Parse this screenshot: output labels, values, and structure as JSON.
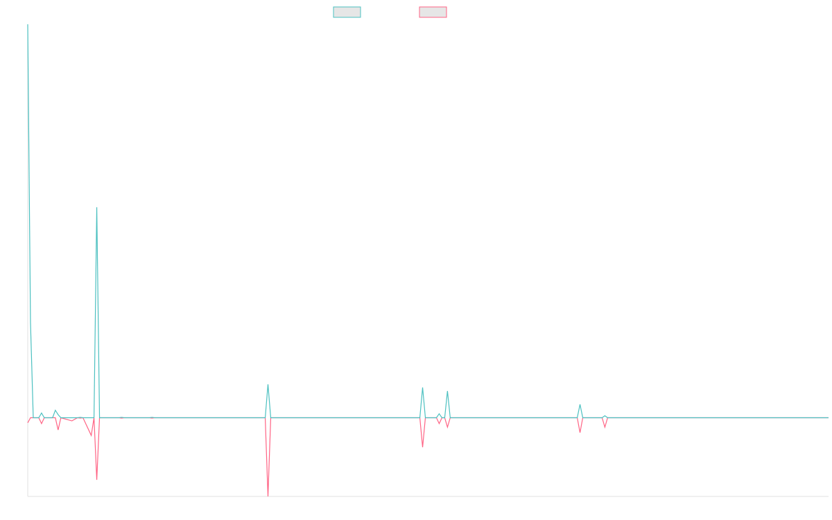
{
  "chart_data": {
    "type": "line",
    "x": [
      0,
      1,
      2,
      4,
      5,
      6,
      9,
      10,
      11,
      12,
      16,
      18,
      19,
      20,
      23,
      24,
      25,
      26,
      33,
      34,
      35,
      44,
      45,
      46,
      86,
      87,
      88,
      142,
      143,
      144,
      148,
      149,
      150,
      151,
      152,
      153,
      199,
      200,
      201,
      208,
      209,
      210,
      290
    ],
    "series": [
      {
        "color": "#4bc0c0",
        "values": [
          100,
          24.2,
          0,
          0,
          1.2,
          0,
          0,
          1.9,
          0.8,
          0,
          0,
          0,
          0.1,
          0,
          0,
          0,
          53.5,
          0,
          0,
          0.1,
          0,
          0,
          0.1,
          0,
          0,
          8.5,
          0,
          0,
          7.7,
          0,
          0,
          1,
          0,
          0,
          6.8,
          0,
          0,
          3.4,
          0,
          0,
          0.5,
          0,
          0
        ]
      },
      {
        "color": "#ff6384",
        "values": [
          -1.3,
          0,
          0,
          0,
          -1.5,
          0,
          0,
          0,
          -3.1,
          0,
          -0.8,
          0,
          -0.1,
          0,
          -4.5,
          0,
          -15.8,
          0,
          0,
          -0.1,
          0,
          0,
          -0.1,
          0,
          0,
          -20,
          0,
          0,
          -7.5,
          0,
          0,
          -1.5,
          0,
          0,
          -2.4,
          0,
          0,
          -3.8,
          0,
          0,
          -2.4,
          0,
          0
        ]
      }
    ],
    "xlim": [
      0,
      290
    ],
    "ylim": [
      -20,
      100
    ]
  }
}
